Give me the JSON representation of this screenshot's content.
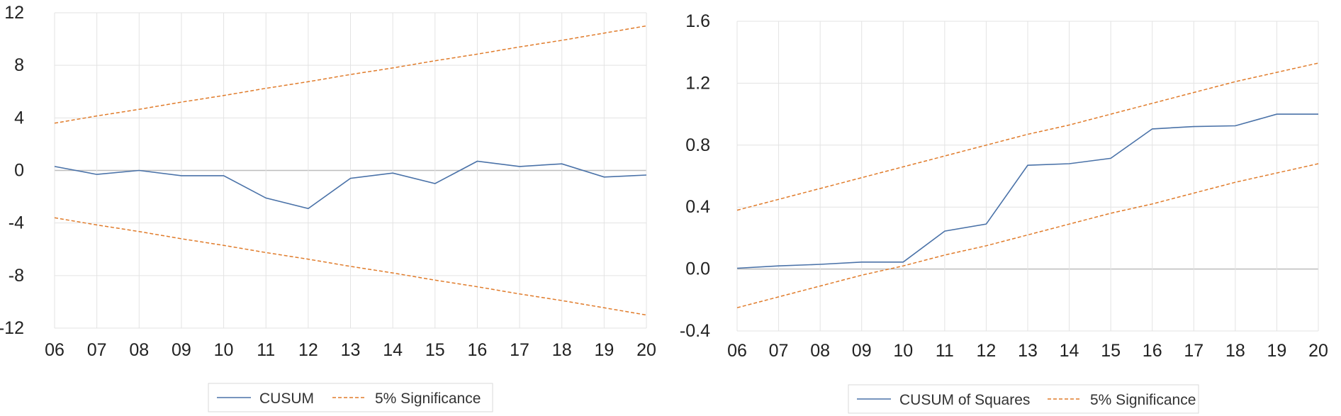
{
  "chart_data": [
    {
      "type": "line",
      "title": "",
      "xlabel": "",
      "ylabel": "",
      "categories": [
        "06",
        "07",
        "08",
        "09",
        "10",
        "11",
        "12",
        "13",
        "14",
        "15",
        "16",
        "17",
        "18",
        "19",
        "20"
      ],
      "ylim": [
        -12,
        12
      ],
      "yticks": [
        12,
        8,
        4,
        0,
        -4,
        -8,
        -12
      ],
      "ytick_labels": [
        "12",
        "8",
        "4",
        "0",
        "-4",
        "-8",
        "-12"
      ],
      "grid": true,
      "legend_position": "bottom",
      "series": [
        {
          "name": "CUSUM",
          "color": "#4a72a8",
          "style": "solid",
          "values": [
            0.3,
            -0.3,
            0.0,
            -0.4,
            -0.4,
            -2.1,
            -2.9,
            -0.6,
            -0.2,
            -1.0,
            0.7,
            0.3,
            0.5,
            -0.5,
            -0.35
          ]
        },
        {
          "name": "5% Significance",
          "color": "#e07b2a",
          "style": "dashed",
          "values": [
            3.6,
            4.15,
            4.65,
            5.2,
            5.7,
            6.25,
            6.75,
            7.3,
            7.8,
            8.35,
            8.85,
            9.4,
            9.9,
            10.45,
            11.0
          ]
        },
        {
          "name": "",
          "color": "#e07b2a",
          "style": "dashed",
          "values": [
            -3.6,
            -4.15,
            -4.65,
            -5.2,
            -5.7,
            -6.25,
            -6.75,
            -7.3,
            -7.8,
            -8.35,
            -8.85,
            -9.4,
            -9.9,
            -10.45,
            -11.0
          ]
        }
      ],
      "legend": [
        {
          "label": "CUSUM",
          "style": "solid",
          "color": "#4a72a8"
        },
        {
          "label": "5% Significance",
          "style": "dashed",
          "color": "#e07b2a"
        }
      ]
    },
    {
      "type": "line",
      "title": "",
      "xlabel": "",
      "ylabel": "",
      "categories": [
        "06",
        "07",
        "08",
        "09",
        "10",
        "11",
        "12",
        "13",
        "14",
        "15",
        "16",
        "17",
        "18",
        "19",
        "20"
      ],
      "ylim": [
        -0.4,
        1.6
      ],
      "yticks": [
        1.6,
        1.2,
        0.8,
        0.4,
        0.0,
        -0.4
      ],
      "ytick_labels": [
        "1.6",
        "1.2",
        "0.8",
        "0.4",
        "0.0",
        "-0.4"
      ],
      "grid": true,
      "legend_position": "bottom",
      "series": [
        {
          "name": "CUSUM of Squares",
          "color": "#4a72a8",
          "style": "solid",
          "values": [
            0.005,
            0.02,
            0.03,
            0.045,
            0.045,
            0.245,
            0.29,
            0.67,
            0.68,
            0.715,
            0.905,
            0.92,
            0.925,
            1.0,
            1.0
          ]
        },
        {
          "name": "5% Significance",
          "color": "#e07b2a",
          "style": "dashed",
          "values": [
            0.38,
            0.45,
            0.52,
            0.59,
            0.66,
            0.73,
            0.8,
            0.87,
            0.93,
            1.0,
            1.07,
            1.14,
            1.21,
            1.27,
            1.33
          ]
        },
        {
          "name": "",
          "color": "#e07b2a",
          "style": "dashed",
          "values": [
            -0.25,
            -0.18,
            -0.11,
            -0.04,
            0.02,
            0.09,
            0.15,
            0.22,
            0.29,
            0.36,
            0.42,
            0.49,
            0.56,
            0.62,
            0.68
          ]
        }
      ],
      "legend": [
        {
          "label": "CUSUM of Squares",
          "style": "solid",
          "color": "#4a72a8"
        },
        {
          "label": "5% Significance",
          "style": "dashed",
          "color": "#e07b2a"
        }
      ]
    }
  ]
}
